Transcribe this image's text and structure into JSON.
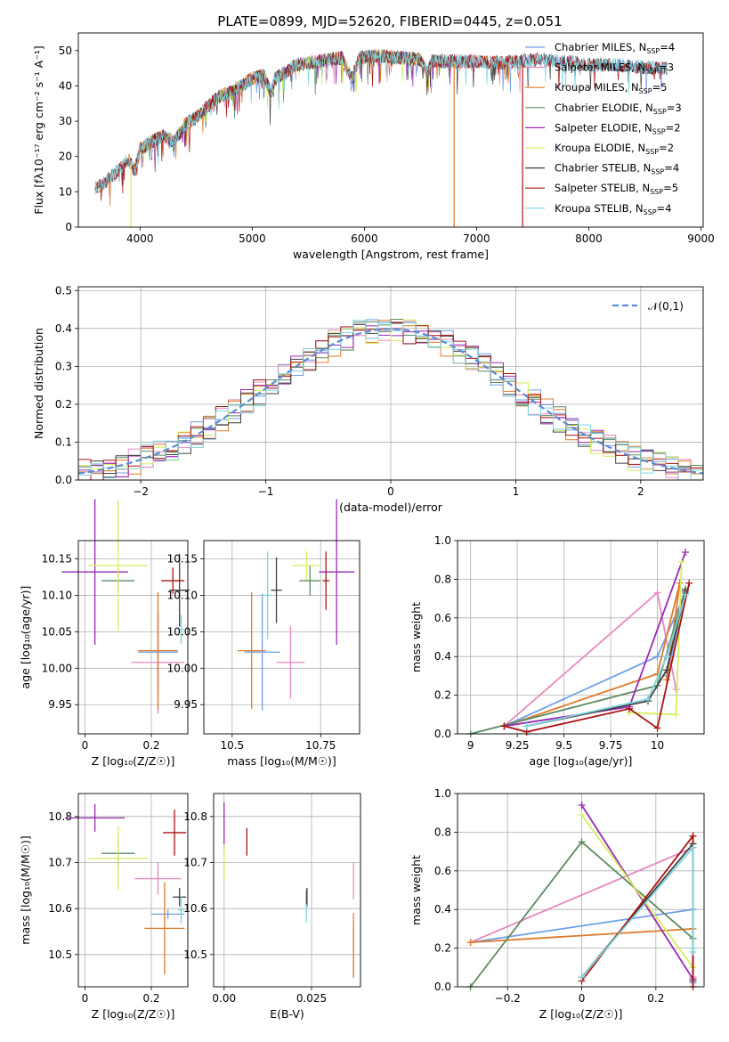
{
  "figure_title": "PLATE=0899, MJD=52620, FIBERID=0445, z=0.051",
  "colors": {
    "Chabrier MILES": "#6f9fe7",
    "Salpeter MILES": "#e888c0",
    "Kroupa MILES": "#de7a28",
    "Chabrier ELODIE": "#5e8a62",
    "Salpeter ELODIE": "#9a2ab4",
    "Kroupa ELODIE": "#d6ee5c",
    "Chabrier STELIB": "#404040",
    "Salpeter STELIB": "#aa1414",
    "Kroupa STELIB": "#7ed6df",
    "normal": "#5b8bd4",
    "grid": "#b0b0b0"
  },
  "chart_data": [
    {
      "id": "spectrum",
      "type": "line",
      "title": "PLATE=0899, MJD=52620, FIBERID=0445, z=0.051",
      "xlabel": "wavelength [Angstrom, rest frame]",
      "ylabel": "Flux [fλ10⁻¹⁷ erg cm⁻² s⁻¹ A⁻¹]",
      "xlim": [
        3450,
        9020
      ],
      "ylim": [
        0,
        55
      ],
      "xticks": [
        4000,
        5000,
        6000,
        7000,
        8000,
        9000
      ],
      "yticks": [
        0,
        10,
        20,
        30,
        40,
        50
      ],
      "grid": false,
      "legend": "right",
      "continuum": [
        [
          3600,
          11
        ],
        [
          3700,
          13
        ],
        [
          3800,
          16
        ],
        [
          3900,
          19
        ],
        [
          3950,
          16
        ],
        [
          4000,
          22
        ],
        [
          4100,
          24
        ],
        [
          4200,
          26
        ],
        [
          4300,
          24
        ],
        [
          4400,
          29
        ],
        [
          4500,
          31
        ],
        [
          4600,
          34
        ],
        [
          4700,
          37
        ],
        [
          4800,
          38
        ],
        [
          4900,
          40
        ],
        [
          5000,
          42
        ],
        [
          5100,
          43
        ],
        [
          5170,
          38
        ],
        [
          5200,
          42
        ],
        [
          5300,
          44
        ],
        [
          5400,
          46
        ],
        [
          5500,
          46.5
        ],
        [
          5600,
          47
        ],
        [
          5700,
          47.5
        ],
        [
          5800,
          48
        ],
        [
          5890,
          42
        ],
        [
          5950,
          48
        ],
        [
          6100,
          48.5
        ],
        [
          6300,
          48
        ],
        [
          6500,
          47.5
        ],
        [
          6560,
          44
        ],
        [
          6600,
          47
        ],
        [
          6800,
          47
        ],
        [
          7000,
          47
        ],
        [
          7200,
          46.5
        ],
        [
          7400,
          47
        ],
        [
          7600,
          47.5
        ],
        [
          7800,
          47
        ],
        [
          8000,
          46
        ],
        [
          8200,
          46
        ],
        [
          8400,
          45.5
        ],
        [
          8600,
          45
        ],
        [
          8700,
          45
        ]
      ],
      "series": [
        {
          "name": "Chabrier MILES, N_SSP=4",
          "label_base": "Chabrier MILES, N",
          "label_n": "=4",
          "range": [
            3600,
            8700
          ]
        },
        {
          "name": "Salpeter MILES, N_SSP=3",
          "label_base": "Salpeter MILES, N",
          "label_n": "=3",
          "range": [
            3600,
            7400
          ]
        },
        {
          "name": "Kroupa MILES, N_SSP=5",
          "label_base": "Kroupa MILES, N",
          "label_n": "=5",
          "range": [
            3600,
            7400
          ]
        },
        {
          "name": "Chabrier ELODIE, N_SSP=3",
          "label_base": "Chabrier ELODIE, N",
          "label_n": "=3",
          "range": [
            3900,
            6800
          ]
        },
        {
          "name": "Salpeter ELODIE, N_SSP=2",
          "label_base": "Salpeter ELODIE, N",
          "label_n": "=2",
          "range": [
            3900,
            6800
          ]
        },
        {
          "name": "Kroupa ELODIE, N_SSP=2",
          "label_base": "Kroupa ELODIE, N",
          "label_n": "=2",
          "range": [
            3900,
            6800
          ]
        },
        {
          "name": "Chabrier STELIB, N_SSP=4",
          "label_base": "Chabrier STELIB, N",
          "label_n": "=4",
          "range": [
            3600,
            8700
          ]
        },
        {
          "name": "Salpeter STELIB, N_SSP=5",
          "label_base": "Salpeter STELIB, N",
          "label_n": "=5",
          "range": [
            3600,
            8700
          ]
        },
        {
          "name": "Kroupa STELIB, N_SSP=4",
          "label_base": "Kroupa STELIB, N",
          "label_n": "=4",
          "range": [
            3600,
            8700
          ]
        }
      ],
      "legend_ssp_subscript": "SSP"
    },
    {
      "id": "residuals",
      "type": "histogram",
      "xlabel": "(data-model)/error",
      "ylabel": "Normed distribution",
      "xlim": [
        -2.5,
        2.5
      ],
      "ylim": [
        0,
        0.51
      ],
      "xticks": [
        -2,
        -1,
        0,
        1,
        2
      ],
      "yticks": [
        0.0,
        0.1,
        0.2,
        0.3,
        0.4,
        0.5
      ],
      "grid": true,
      "bin_width": 0.1,
      "legend": "top-right",
      "legend_label": "𝒩(0,1)"
    },
    {
      "id": "age_vs_Z",
      "type": "scatter",
      "xlabel": "Z [log₁₀(Z/Z☉)]",
      "ylabel": "age  [log₁₀(age/yr)]",
      "xlim": [
        -0.02,
        0.31
      ],
      "ylim": [
        9.91,
        10.175
      ],
      "xticks": [
        0.0,
        0.2
      ],
      "yticks": [
        9.95,
        10.0,
        10.05,
        10.1,
        10.15
      ],
      "grid": true,
      "points": [
        {
          "c": "Chabrier MILES",
          "x": 0.22,
          "y": 10.022,
          "xerr": 0.06,
          "yerr": 0.05
        },
        {
          "c": "Salpeter MILES",
          "x": 0.22,
          "y": 10.008,
          "xerr": 0.08,
          "yerr": 0.07
        },
        {
          "c": "Kroupa MILES",
          "x": 0.22,
          "y": 10.024,
          "xerr": 0.06,
          "yerr": 0.08
        },
        {
          "c": "Chabrier ELODIE",
          "x": 0.1,
          "y": 10.12,
          "xerr": 0.05,
          "yerr": 0.015
        },
        {
          "c": "Salpeter ELODIE",
          "x": 0.03,
          "y": 10.132,
          "xerr": 0.1,
          "yerr": 0.1
        },
        {
          "c": "Kroupa ELODIE",
          "x": 0.1,
          "y": 10.141,
          "xerr": 0.09,
          "yerr": 0.09
        },
        {
          "c": "Chabrier STELIB",
          "x": 0.285,
          "y": 10.107,
          "xerr": 0.03,
          "yerr": 0.05
        },
        {
          "c": "Salpeter STELIB",
          "x": 0.265,
          "y": 10.12,
          "xerr": 0.035,
          "yerr": 0.018
        },
        {
          "c": "Kroupa STELIB",
          "x": 0.29,
          "y": 10.053,
          "xerr": 0.01,
          "yerr": 0.02
        }
      ]
    },
    {
      "id": "age_vs_mass",
      "type": "scatter",
      "xlabel": "mass [log₁₀(M/M☉)]",
      "ylabel": "",
      "xlim": [
        10.42,
        10.86
      ],
      "ylim": [
        9.91,
        10.175
      ],
      "xticks": [
        10.5,
        10.75
      ],
      "yticks": [
        9.95,
        10.0,
        10.05,
        10.1,
        10.15
      ],
      "grid": true,
      "points": [
        {
          "c": "Chabrier MILES",
          "x": 10.585,
          "y": 10.022,
          "xerr": 0.05,
          "yerr": 0.08
        },
        {
          "c": "Salpeter MILES",
          "x": 10.665,
          "y": 10.008,
          "xerr": 0.04,
          "yerr": 0.05
        },
        {
          "c": "Kroupa MILES",
          "x": 10.555,
          "y": 10.024,
          "xerr": 0.04,
          "yerr": 0.08
        },
        {
          "c": "Chabrier ELODIE",
          "x": 10.72,
          "y": 10.12,
          "xerr": 0.03,
          "yerr": 0.02
        },
        {
          "c": "Salpeter ELODIE",
          "x": 10.795,
          "y": 10.132,
          "xerr": 0.05,
          "yerr": 0.1
        },
        {
          "c": "Kroupa ELODIE",
          "x": 10.71,
          "y": 10.141,
          "xerr": 0.04,
          "yerr": 0.02
        },
        {
          "c": "Chabrier STELIB",
          "x": 10.625,
          "y": 10.107,
          "xerr": 0.015,
          "yerr": 0.045
        },
        {
          "c": "Salpeter STELIB",
          "x": 10.765,
          "y": 10.12,
          "xerr": 0.01,
          "yerr": 0.04
        },
        {
          "c": "Kroupa STELIB",
          "x": 10.6,
          "y": 10.1,
          "xerr": 0.012,
          "yerr": 0.06
        }
      ]
    },
    {
      "id": "weight_vs_age",
      "type": "line",
      "xlabel": "age  [log₁₀(age/yr)]",
      "ylabel": "mass weight",
      "xlim": [
        8.93,
        10.25
      ],
      "ylim": [
        0,
        1.0
      ],
      "xticks": [
        9.0,
        9.25,
        9.5,
        9.75,
        10.0
      ],
      "yticks": [
        0.0,
        0.2,
        0.4,
        0.6,
        0.8,
        1.0
      ],
      "grid": true,
      "series": [
        {
          "c": "Chabrier MILES",
          "x": [
            9.18,
            10.0,
            10.15,
            10.05
          ],
          "y": [
            0.04,
            0.4,
            0.73,
            0.3
          ]
        },
        {
          "c": "Salpeter MILES",
          "x": [
            9.18,
            10.0,
            10.1
          ],
          "y": [
            0.04,
            0.73,
            0.23
          ]
        },
        {
          "c": "Kroupa MILES",
          "x": [
            9.18,
            10.0,
            10.12,
            10.05
          ],
          "y": [
            0.04,
            0.31,
            0.78,
            0.28
          ]
        },
        {
          "c": "Chabrier ELODIE",
          "x": [
            9.0,
            10.0,
            10.15
          ],
          "y": [
            0.0,
            0.25,
            0.75
          ]
        },
        {
          "c": "Salpeter ELODIE",
          "x": [
            9.18,
            9.85,
            10.15
          ],
          "y": [
            0.04,
            0.14,
            0.94
          ]
        },
        {
          "c": "Kroupa ELODIE",
          "x": [
            9.85,
            10.1,
            10.13
          ],
          "y": [
            0.11,
            0.1,
            0.89
          ]
        },
        {
          "c": "Chabrier STELIB",
          "x": [
            9.3,
            9.95,
            10.05,
            10.15
          ],
          "y": [
            0.04,
            0.17,
            0.33,
            0.74
          ]
        },
        {
          "c": "Salpeter STELIB",
          "x": [
            9.18,
            9.3,
            9.85,
            10.0,
            10.17
          ],
          "y": [
            0.04,
            0.01,
            0.13,
            0.03,
            0.78
          ]
        },
        {
          "c": "Kroupa STELIB",
          "x": [
            9.3,
            9.95,
            10.05,
            10.15
          ],
          "y": [
            0.04,
            0.18,
            0.4,
            0.72
          ]
        }
      ]
    },
    {
      "id": "mass_vs_Z",
      "type": "scatter",
      "xlabel": "Z [log₁₀(Z/Z☉)]",
      "ylabel": "mass [log₁₀(M/M☉)]",
      "xlim": [
        -0.02,
        0.31
      ],
      "ylim": [
        10.43,
        10.85
      ],
      "xticks": [
        0.0,
        0.2
      ],
      "yticks": [
        10.5,
        10.6,
        10.7,
        10.8
      ],
      "grid": true,
      "points": [
        {
          "c": "Chabrier MILES",
          "x": 0.25,
          "y": 10.588,
          "xerr": 0.05,
          "yerr": 0.01
        },
        {
          "c": "Salpeter MILES",
          "x": 0.22,
          "y": 10.665,
          "xerr": 0.07,
          "yerr": 0.035
        },
        {
          "c": "Kroupa MILES",
          "x": 0.24,
          "y": 10.557,
          "xerr": 0.06,
          "yerr": 0.1
        },
        {
          "c": "Chabrier ELODIE",
          "x": 0.1,
          "y": 10.72,
          "xerr": 0.05,
          "yerr": 0.03
        },
        {
          "c": "Salpeter ELODIE",
          "x": 0.03,
          "y": 10.797,
          "xerr": 0.09,
          "yerr": 0.03
        },
        {
          "c": "Kroupa ELODIE",
          "x": 0.1,
          "y": 10.709,
          "xerr": 0.09,
          "yerr": 0.07
        },
        {
          "c": "Chabrier STELIB",
          "x": 0.285,
          "y": 10.625,
          "xerr": 0.02,
          "yerr": 0.02
        },
        {
          "c": "Salpeter STELIB",
          "x": 0.27,
          "y": 10.765,
          "xerr": 0.035,
          "yerr": 0.05
        },
        {
          "c": "Kroupa STELIB",
          "x": 0.29,
          "y": 10.597,
          "xerr": 0.01,
          "yerr": 0.03
        }
      ]
    },
    {
      "id": "mass_vs_ebv",
      "type": "scatter",
      "xlabel": "E(B-V)",
      "ylabel": "",
      "xlim": [
        -0.003,
        0.039
      ],
      "ylim": [
        10.43,
        10.85
      ],
      "xticks": [
        0.0,
        0.025
      ],
      "yticks": [
        10.5,
        10.6,
        10.7,
        10.8
      ],
      "grid": true,
      "points": [
        {
          "c": "Chabrier MILES",
          "x": 0.037,
          "y": 10.5,
          "xerr": 0,
          "yerr": 0.05
        },
        {
          "c": "Salpeter MILES",
          "x": 0.037,
          "y": 10.66,
          "xerr": 0,
          "yerr": 0.04
        },
        {
          "c": "Kroupa MILES",
          "x": 0.037,
          "y": 10.52,
          "xerr": 0,
          "yerr": 0.07
        },
        {
          "c": "Chabrier ELODIE",
          "x": 0.0235,
          "y": 10.62,
          "xerr": 0,
          "yerr": 0.02
        },
        {
          "c": "Salpeter ELODIE",
          "x": 0.0,
          "y": 10.78,
          "xerr": 0,
          "yerr": 0.05
        },
        {
          "c": "Kroupa ELODIE",
          "x": 0.0,
          "y": 10.7,
          "xerr": 0,
          "yerr": 0.04
        },
        {
          "c": "Chabrier STELIB",
          "x": 0.0237,
          "y": 10.625,
          "xerr": 0,
          "yerr": 0.02
        },
        {
          "c": "Salpeter STELIB",
          "x": 0.0065,
          "y": 10.745,
          "xerr": 0,
          "yerr": 0.03
        },
        {
          "c": "Kroupa STELIB",
          "x": 0.0235,
          "y": 10.59,
          "xerr": 0,
          "yerr": 0.02
        }
      ]
    },
    {
      "id": "weight_vs_Z",
      "type": "line",
      "xlabel": "Z [log₁₀(Z/Z☉)]",
      "ylabel": "mass weight",
      "xlim": [
        -0.335,
        0.33
      ],
      "ylim": [
        0,
        1.0
      ],
      "xticks": [
        -0.2,
        0.0,
        0.2
      ],
      "yticks": [
        0.0,
        0.2,
        0.4,
        0.6,
        0.8,
        1.0
      ],
      "grid": true,
      "series": [
        {
          "c": "Chabrier MILES",
          "x": [
            -0.3,
            0.3,
            0.3,
            0.3
          ],
          "y": [
            0.23,
            0.4,
            0.72,
            0.02
          ]
        },
        {
          "c": "Salpeter MILES",
          "x": [
            -0.3,
            0.3,
            0.3
          ],
          "y": [
            0.23,
            0.72,
            0.05
          ]
        },
        {
          "c": "Kroupa MILES",
          "x": [
            -0.3,
            0.3,
            0.3
          ],
          "y": [
            0.23,
            0.3,
            0.78
          ]
        },
        {
          "c": "Chabrier ELODIE",
          "x": [
            -0.3,
            0.0,
            0.3
          ],
          "y": [
            0.0,
            0.75,
            0.25
          ]
        },
        {
          "c": "Salpeter ELODIE",
          "x": [
            0.0,
            0.3
          ],
          "y": [
            0.94,
            0.04
          ]
        },
        {
          "c": "Kroupa ELODIE",
          "x": [
            0.0,
            0.3
          ],
          "y": [
            0.89,
            0.1
          ]
        },
        {
          "c": "Chabrier STELIB",
          "x": [
            0.0,
            0.3,
            0.3
          ],
          "y": [
            0.05,
            0.74,
            0.03
          ]
        },
        {
          "c": "Salpeter STELIB",
          "x": [
            0.0,
            0.3,
            0.3
          ],
          "y": [
            0.03,
            0.78,
            0.0
          ]
        },
        {
          "c": "Kroupa STELIB",
          "x": [
            0.0,
            0.3,
            0.3,
            0.3
          ],
          "y": [
            0.05,
            0.72,
            0.2,
            0.18
          ]
        }
      ]
    }
  ]
}
